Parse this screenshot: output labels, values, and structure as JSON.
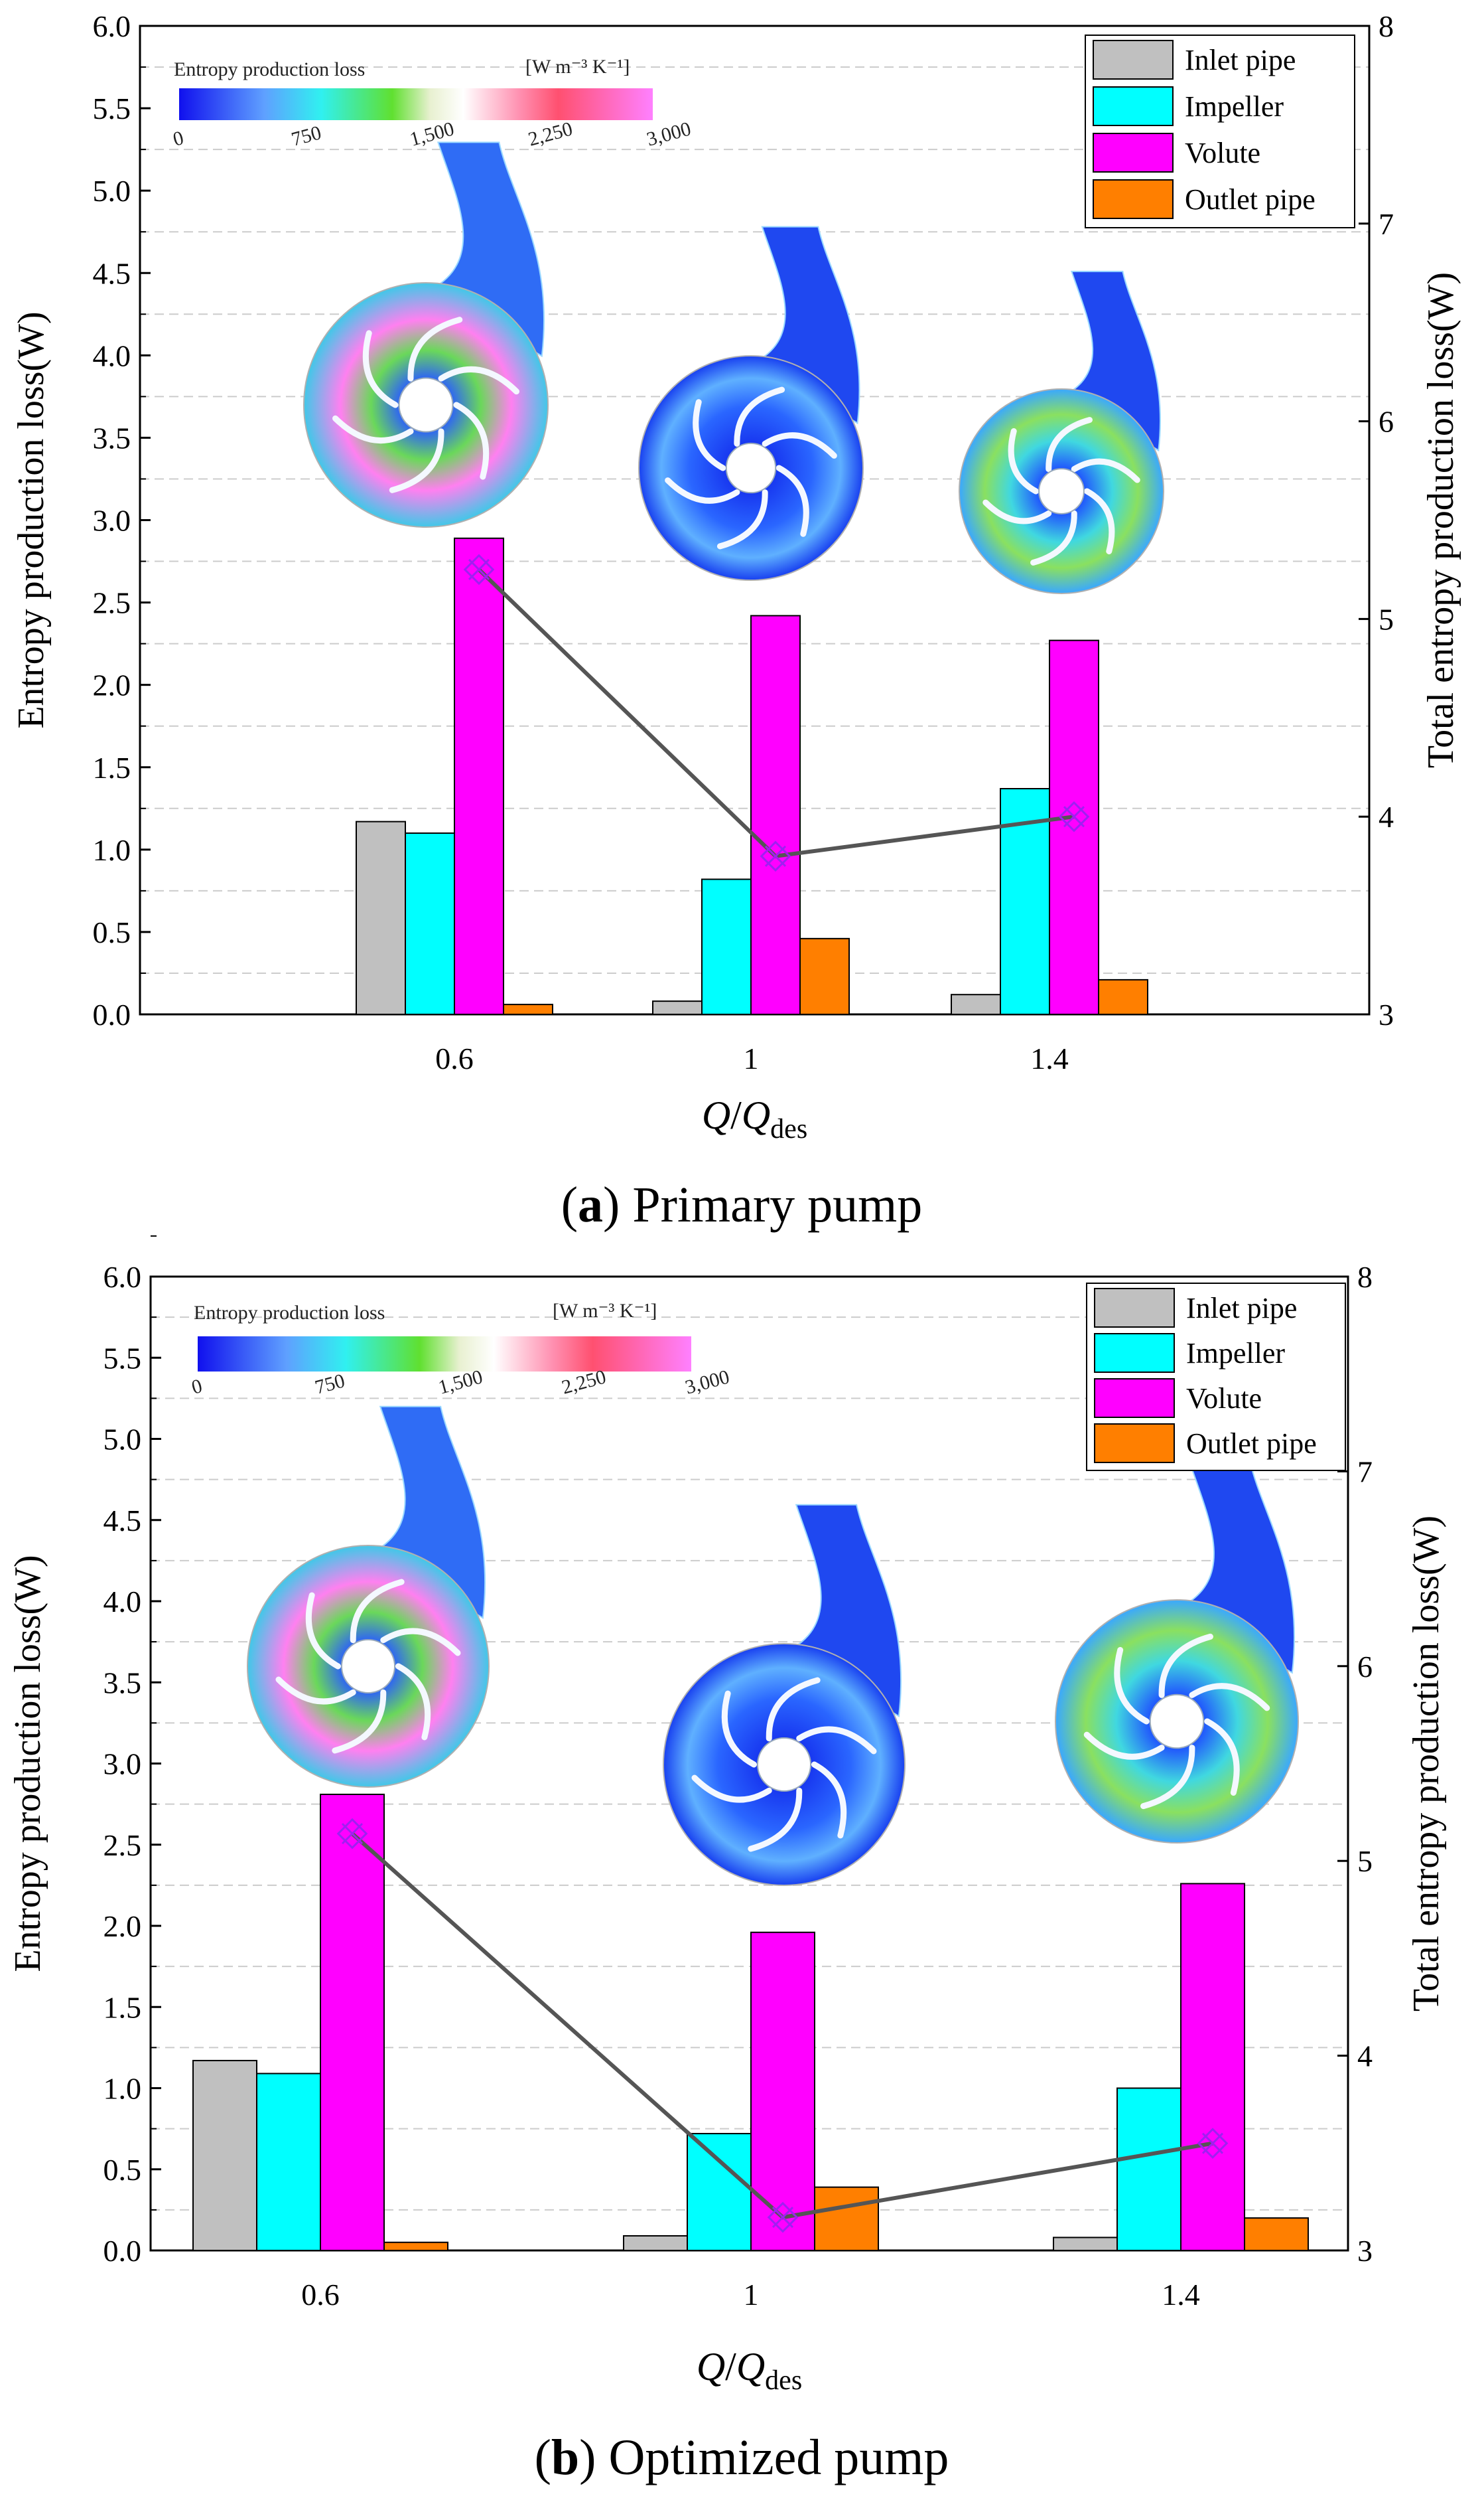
{
  "chart_data": [
    {
      "type": "bar",
      "caption_letter": "a",
      "caption_text": " Primary pump",
      "categories": [
        "0.6",
        "1",
        "1.4"
      ],
      "series": [
        {
          "name": "Inlet pipe",
          "color": "#c0c0c0",
          "values": [
            1.17,
            0.08,
            0.12
          ]
        },
        {
          "name": "Impeller",
          "color": "#00ffff",
          "values": [
            1.1,
            0.82,
            1.37
          ]
        },
        {
          "name": "Volute",
          "color": "#ff00ff",
          "values": [
            2.89,
            2.42,
            2.27
          ]
        },
        {
          "name": "Outlet pipe",
          "color": "#ff7f00",
          "values": [
            0.06,
            0.46,
            0.21
          ]
        }
      ],
      "total_line": {
        "name": "Total entropy production loss",
        "color": "#555555",
        "marker_color": "#a020f0",
        "values": [
          5.25,
          3.8,
          4.0
        ]
      },
      "ylabel": "Entropy production loss(W)",
      "y2label": "Total entropy production loss(W)",
      "xlabel_italic_1": "Q",
      "xlabel_sep": "/",
      "xlabel_italic_2": "Q",
      "xlabel_sub": "des",
      "ylim": [
        0,
        6
      ],
      "y_ticks": [
        "0.0",
        "0.5",
        "1.0",
        "1.5",
        "2.0",
        "2.5",
        "3.0",
        "3.5",
        "4.0",
        "4.5",
        "5.0",
        "5.5",
        "6.0"
      ],
      "y2lim": [
        3,
        8
      ],
      "y2_ticks": [
        "3",
        "4",
        "5",
        "6",
        "7",
        "8"
      ],
      "legend_position": "top-right",
      "colorbar": {
        "title": "Entropy production loss",
        "unit": "[W m⁻³ K⁻¹]",
        "ticks": [
          "0",
          "750",
          "1,500",
          "2,250",
          "3,000"
        ]
      }
    },
    {
      "type": "bar",
      "caption_letter": "b",
      "caption_text": " Optimized pump",
      "categories": [
        "0.6",
        "1",
        "1.4"
      ],
      "series": [
        {
          "name": "Inlet pipe",
          "color": "#c0c0c0",
          "values": [
            1.17,
            0.09,
            0.08
          ]
        },
        {
          "name": "Impeller",
          "color": "#00ffff",
          "values": [
            1.09,
            0.72,
            1.0
          ]
        },
        {
          "name": "Volute",
          "color": "#ff00ff",
          "values": [
            2.81,
            1.96,
            2.26
          ]
        },
        {
          "name": "Outlet pipe",
          "color": "#ff7f00",
          "values": [
            0.05,
            0.39,
            0.2
          ]
        }
      ],
      "total_line": {
        "name": "Total entropy production loss",
        "color": "#555555",
        "marker_color": "#a020f0",
        "values": [
          5.14,
          3.17,
          3.55
        ]
      },
      "ylabel": "Entropy production loss(W)",
      "y2label": "Total entropy production loss(W)",
      "xlabel_italic_1": "Q",
      "xlabel_sep": "/",
      "xlabel_italic_2": "Q",
      "xlabel_sub": "des",
      "ylim": [
        0,
        6
      ],
      "y_ticks": [
        "0.0",
        "0.5",
        "1.0",
        "1.5",
        "2.0",
        "2.5",
        "3.0",
        "3.5",
        "4.0",
        "4.5",
        "5.0",
        "5.5",
        "6.0"
      ],
      "y2lim": [
        3,
        8
      ],
      "y2_ticks": [
        "3",
        "4",
        "5",
        "6",
        "7",
        "8"
      ],
      "legend_position": "top-right",
      "colorbar": {
        "title": "Entropy production loss",
        "unit": "[W m⁻³ K⁻¹]",
        "ticks": [
          "0",
          "750",
          "1,500",
          "2,250",
          "3,000"
        ]
      }
    }
  ]
}
